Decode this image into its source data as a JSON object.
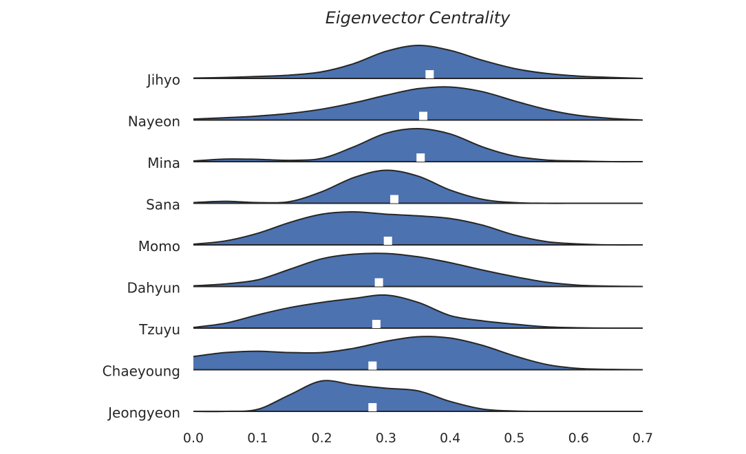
{
  "chart_data": {
    "type": "ridgeline",
    "title": "Eigenvector Centrality",
    "xlim": [
      0.0,
      0.7
    ],
    "xticks": [
      "0.0",
      "0.1",
      "0.2",
      "0.3",
      "0.4",
      "0.5",
      "0.6",
      "0.7"
    ],
    "fill_color": "#4c72b0",
    "line_color": "#262626",
    "marker_color": "#ffffff",
    "grid": false,
    "x": [
      0.0,
      0.05,
      0.1,
      0.15,
      0.2,
      0.25,
      0.3,
      0.35,
      0.4,
      0.45,
      0.5,
      0.55,
      0.6,
      0.65,
      0.7
    ],
    "series": [
      {
        "name": "Jihyo",
        "marker": 0.368,
        "density": [
          0.01,
          0.03,
          0.06,
          0.1,
          0.2,
          0.45,
          0.82,
          1.0,
          0.85,
          0.55,
          0.3,
          0.15,
          0.07,
          0.03,
          0.0
        ]
      },
      {
        "name": "Nayeon",
        "marker": 0.358,
        "density": [
          0.03,
          0.07,
          0.12,
          0.2,
          0.33,
          0.52,
          0.75,
          0.95,
          1.0,
          0.86,
          0.58,
          0.32,
          0.14,
          0.05,
          0.0
        ]
      },
      {
        "name": "Mina",
        "marker": 0.354,
        "density": [
          0.02,
          0.08,
          0.07,
          0.04,
          0.1,
          0.45,
          0.86,
          1.0,
          0.84,
          0.45,
          0.17,
          0.05,
          0.02,
          0.0,
          0.0
        ]
      },
      {
        "name": "Sana",
        "marker": 0.313,
        "density": [
          0.02,
          0.06,
          0.02,
          0.05,
          0.35,
          0.78,
          1.0,
          0.82,
          0.4,
          0.12,
          0.02,
          0.0,
          0.0,
          0.0,
          0.0
        ]
      },
      {
        "name": "Momo",
        "marker": 0.303,
        "density": [
          0.02,
          0.12,
          0.35,
          0.68,
          0.93,
          1.0,
          0.93,
          0.88,
          0.8,
          0.6,
          0.3,
          0.1,
          0.03,
          0.0,
          0.0
        ]
      },
      {
        "name": "Dahyun",
        "marker": 0.289,
        "density": [
          0.02,
          0.08,
          0.2,
          0.52,
          0.84,
          0.98,
          1.0,
          0.9,
          0.72,
          0.5,
          0.3,
          0.13,
          0.04,
          0.01,
          0.0
        ]
      },
      {
        "name": "Tzuyu",
        "marker": 0.285,
        "density": [
          0.02,
          0.15,
          0.4,
          0.62,
          0.78,
          0.9,
          1.0,
          0.78,
          0.38,
          0.22,
          0.12,
          0.04,
          0.01,
          0.0,
          0.0
        ]
      },
      {
        "name": "Chaeyoung",
        "marker": 0.279,
        "density": [
          0.4,
          0.52,
          0.56,
          0.52,
          0.52,
          0.65,
          0.86,
          1.0,
          0.96,
          0.74,
          0.42,
          0.16,
          0.04,
          0.01,
          0.0
        ]
      },
      {
        "name": "Jeongyeon",
        "marker": 0.279,
        "density": [
          0.0,
          0.0,
          0.06,
          0.5,
          0.92,
          0.8,
          0.7,
          0.62,
          0.3,
          0.07,
          0.01,
          0.0,
          0.0,
          0.0,
          0.0
        ]
      }
    ]
  }
}
